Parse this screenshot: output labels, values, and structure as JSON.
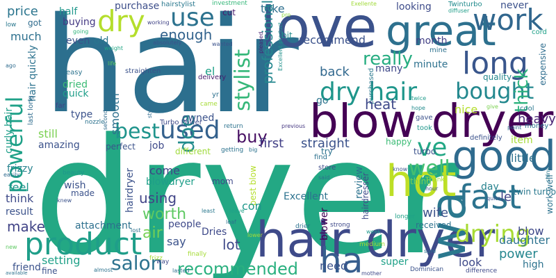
{
  "words": [
    {
      "text": "hair",
      "color": "#2c6f8e"
    },
    {
      "text": "dryer",
      "color": "#23a884"
    },
    {
      "text": "love",
      "color": "#3b528b"
    },
    {
      "text": "great",
      "color": "#2d708e"
    },
    {
      "text": "blow dryer",
      "color": "#440154"
    },
    {
      "text": "hair dryer",
      "color": "#3e4a89"
    },
    {
      "text": "wa",
      "color": "#2a788e"
    },
    {
      "text": "dry",
      "color": "#b4de2c"
    },
    {
      "text": "use",
      "color": "#2c728e"
    },
    {
      "text": "work",
      "color": "#31678e"
    },
    {
      "text": "good",
      "color": "#2f6b8e"
    },
    {
      "text": "hot",
      "color": "#bddf26"
    },
    {
      "text": "fast",
      "color": "#2c738e"
    },
    {
      "text": "product",
      "color": "#1f9e89"
    },
    {
      "text": "bought",
      "color": "#23888e"
    },
    {
      "text": "long",
      "color": "#39568c"
    },
    {
      "text": "dry hair",
      "color": "#1f968b"
    },
    {
      "text": "drying",
      "color": "#a8db34"
    },
    {
      "text": "best",
      "color": "#1f948c"
    },
    {
      "text": "used",
      "color": "#34618d"
    },
    {
      "text": "powerful",
      "color": "#1fa188"
    },
    {
      "text": "stylist",
      "color": "#35b779"
    },
    {
      "text": "doe",
      "color": "#228c8d"
    },
    {
      "text": "buy",
      "color": "#471063"
    },
    {
      "text": "ve",
      "color": "#22a785"
    },
    {
      "text": "well",
      "color": "#44bf70"
    },
    {
      "text": "really",
      "color": "#26ad81"
    },
    {
      "text": "salon",
      "color": "#2c728e"
    },
    {
      "text": "ha",
      "color": "#365d8d"
    },
    {
      "text": "recommended",
      "color": "#2ab07f"
    },
    {
      "text": "enough",
      "color": "#33638d"
    },
    {
      "text": "thick",
      "color": "#2db27d"
    },
    {
      "text": "price",
      "color": "#2b758e"
    },
    {
      "text": "half",
      "color": "#1f978b"
    },
    {
      "text": "purchase",
      "color": "#3d4e8a"
    },
    {
      "text": "take",
      "color": "#2e6f8e"
    },
    {
      "text": "cut",
      "color": "#481b6d"
    },
    {
      "text": "hairstylist",
      "color": "#2a788e"
    },
    {
      "text": "investment",
      "color": "#35b779"
    },
    {
      "text": "looking",
      "color": "#3e4c8a"
    },
    {
      "text": "never",
      "color": "#3b518b"
    },
    {
      "text": "Twinturbo",
      "color": "#228b8d"
    },
    {
      "text": "diffuser",
      "color": "#1f9e89"
    },
    {
      "text": "pro",
      "color": "#90d743"
    },
    {
      "text": "Exellente",
      "color": "#a0da39"
    },
    {
      "text": "much",
      "color": "#2d708e"
    },
    {
      "text": "buying",
      "color": "#443983"
    },
    {
      "text": "professional",
      "color": "#24878e"
    },
    {
      "text": "recommend",
      "color": "#3b528b"
    },
    {
      "text": "month",
      "color": "#424086"
    },
    {
      "text": "cord",
      "color": "#1fa188"
    },
    {
      "text": "mine",
      "color": "#2c718e"
    },
    {
      "text": "minute",
      "color": "#2d718e"
    },
    {
      "text": "expensive",
      "color": "#2e6d8e"
    },
    {
      "text": "quality",
      "color": "#23888e"
    },
    {
      "text": "even",
      "color": "#3b528b"
    },
    {
      "text": "old",
      "color": "#2a768e"
    },
    {
      "text": "weight",
      "color": "#22a785"
    },
    {
      "text": "got",
      "color": "#2f6c8e"
    },
    {
      "text": "going",
      "color": "#31b57b"
    },
    {
      "text": "working",
      "color": "#414487"
    },
    {
      "text": "absolutely",
      "color": "#3b528b"
    },
    {
      "text": "wanted",
      "color": "#3b528b"
    },
    {
      "text": "bit",
      "color": "#228d8d"
    },
    {
      "text": "pleased",
      "color": "#481f70"
    },
    {
      "text": "Excellent product",
      "color": "#21918c"
    },
    {
      "text": "low",
      "color": "#2a788e"
    },
    {
      "text": "easy",
      "color": "#2c738e"
    },
    {
      "text": "life",
      "color": "#5ec962"
    },
    {
      "text": "hair quickly",
      "color": "#2c728e"
    },
    {
      "text": "quick",
      "color": "#1f9e89"
    },
    {
      "text": "dried",
      "color": "#3bbb75"
    },
    {
      "text": "straighten",
      "color": "#3b528b"
    },
    {
      "text": "delivery",
      "color": "#481b6d"
    },
    {
      "text": "el",
      "color": "#1fa188"
    },
    {
      "text": "yr",
      "color": "#2d708e"
    },
    {
      "text": "back",
      "color": "#31688e"
    },
    {
      "text": "many",
      "color": "#3f4889"
    },
    {
      "text": "purchased",
      "color": "#2a788e"
    },
    {
      "text": "twice",
      "color": "#1e9b8a"
    },
    {
      "text": "hope",
      "color": "#228b8d"
    },
    {
      "text": "cool",
      "color": "#2a788e"
    },
    {
      "text": "nice",
      "color": "#b4de2c"
    },
    {
      "text": "give",
      "color": "#7ad151"
    },
    {
      "text": "heat",
      "color": "#3e4989"
    },
    {
      "text": "go",
      "color": "#2c738e"
    },
    {
      "text": "heavy",
      "color": "#482475"
    },
    {
      "text": "money",
      "color": "#2b748e"
    },
    {
      "text": "point",
      "color": "#2f6c8e"
    },
    {
      "text": "ago",
      "color": "#2f6c8e"
    },
    {
      "text": "far",
      "color": "#424086"
    },
    {
      "text": "type",
      "color": "#3b528b"
    },
    {
      "text": "owned",
      "color": "#3b528b"
    },
    {
      "text": "came",
      "color": "#a5db36"
    },
    {
      "text": "style",
      "color": "#2f6b8e"
    },
    {
      "text": "smooth",
      "color": "#2d708e"
    },
    {
      "text": "last long",
      "color": "#2f6c8e"
    },
    {
      "text": "curly hair",
      "color": "#1f9e89"
    },
    {
      "text": "nozzle",
      "color": "#2c728e"
    },
    {
      "text": "second",
      "color": "#2f6b8e"
    },
    {
      "text": "Turbo Power",
      "color": "#3e4989"
    },
    {
      "text": "return",
      "color": "#2c728e"
    },
    {
      "text": "previous",
      "color": "#453781"
    },
    {
      "text": "gave",
      "color": "#3b528b"
    },
    {
      "text": "took",
      "color": "#1f978b"
    },
    {
      "text": "definitely",
      "color": "#3b528b"
    },
    {
      "text": "item",
      "color": "#a5db36"
    },
    {
      "text": "still",
      "color": "#7ad151"
    },
    {
      "text": "amazing",
      "color": "#3b528b"
    },
    {
      "text": "first",
      "color": "#424086"
    },
    {
      "text": "straight",
      "color": "#3b528b"
    },
    {
      "text": "happy",
      "color": "#3bbb75"
    },
    {
      "text": "perfect",
      "color": "#3b528b"
    },
    {
      "text": "job",
      "color": "#3e4989"
    },
    {
      "text": "different",
      "color": "#9fda3a"
    },
    {
      "text": "getting",
      "color": "#2c728e"
    },
    {
      "text": "big",
      "color": "#2c728e"
    },
    {
      "text": "try",
      "color": "#2c728e"
    },
    {
      "text": "turbo",
      "color": "#3b528b"
    },
    {
      "text": "little",
      "color": "#2d718e"
    },
    {
      "text": "frizzy",
      "color": "#26828e"
    },
    {
      "text": "come",
      "color": "#414487"
    },
    {
      "text": "blowdryer",
      "color": "#1f9e89"
    },
    {
      "text": "find",
      "color": "#2c718e"
    },
    {
      "text": "store",
      "color": "#3e4a89"
    },
    {
      "text": "know",
      "color": "#3b528b"
    },
    {
      "text": "shiny",
      "color": "#2a788e"
    },
    {
      "text": "easily",
      "color": "#2f6b8e"
    },
    {
      "text": "beauty",
      "color": "#1f978b"
    },
    {
      "text": "wish",
      "color": "#3b528b"
    },
    {
      "text": "mom",
      "color": "#3e4989"
    },
    {
      "text": "review",
      "color": "#2c728e"
    },
    {
      "text": "thing",
      "color": "#7ad151"
    },
    {
      "text": "Thank",
      "color": "#a5db36"
    },
    {
      "text": "said",
      "color": "#2c728e"
    },
    {
      "text": "day",
      "color": "#26828e"
    },
    {
      "text": "hour",
      "color": "#3b528b"
    },
    {
      "text": "twin turbo",
      "color": "#2a788e"
    },
    {
      "text": "work well",
      "color": "#2c728e"
    },
    {
      "text": "feel",
      "color": "#1f968b"
    },
    {
      "text": "think",
      "color": "#3e4a89"
    },
    {
      "text": "knew",
      "color": "#3b528b"
    },
    {
      "text": "made",
      "color": "#3b528b"
    },
    {
      "text": "hairdryer",
      "color": "#3b528b"
    },
    {
      "text": "using",
      "color": "#414487"
    },
    {
      "text": "best blow",
      "color": "#b4de2c"
    },
    {
      "text": "con",
      "color": "#1f978b"
    },
    {
      "text": "Excellent",
      "color": "#2c728e"
    },
    {
      "text": "hairdresser",
      "color": "#3e4989"
    },
    {
      "text": "wife",
      "color": "#3b528b"
    },
    {
      "text": "quite",
      "color": "#3b528b"
    },
    {
      "text": "le",
      "color": "#414487"
    },
    {
      "text": "result",
      "color": "#3b528b"
    },
    {
      "text": "worth",
      "color": "#5ec962"
    },
    {
      "text": "attachment",
      "color": "#2d708e"
    },
    {
      "text": "least",
      "color": "#2a788e"
    },
    {
      "text": "leave",
      "color": "#1fa188"
    },
    {
      "text": "blower",
      "color": "#440154"
    },
    {
      "text": "received",
      "color": "#2c728e"
    },
    {
      "text": "longer",
      "color": "#1fa188"
    },
    {
      "text": "blow",
      "color": "#3e4989"
    },
    {
      "text": "make",
      "color": "#414487"
    },
    {
      "text": "air",
      "color": "#75d054"
    },
    {
      "text": "people",
      "color": "#3e4989"
    },
    {
      "text": "lost",
      "color": "#2c728e"
    },
    {
      "text": "Dries",
      "color": "#3e4989"
    },
    {
      "text": "leaf",
      "color": "#2c728e"
    },
    {
      "text": "lower",
      "color": "#a5db36"
    },
    {
      "text": "drier",
      "color": "#2c728e"
    },
    {
      "text": "strong",
      "color": "#3e4989"
    },
    {
      "text": "week",
      "color": "#1f978b"
    },
    {
      "text": "daughter",
      "color": "#2c728e"
    },
    {
      "text": "power",
      "color": "#24868e"
    },
    {
      "text": "high",
      "color": "#2c728e"
    },
    {
      "text": "say",
      "color": "#3b528b"
    },
    {
      "text": "lot",
      "color": "#3e4989"
    },
    {
      "text": "new",
      "color": "#5ec962"
    },
    {
      "text": "friend",
      "color": "#3b528b"
    },
    {
      "text": "setting",
      "color": "#1fa188"
    },
    {
      "text": "frizz",
      "color": "#a5db36"
    },
    {
      "text": "finally",
      "color": "#a5db36"
    },
    {
      "text": "medium",
      "color": "#a5db36"
    },
    {
      "text": "super",
      "color": "#1fa188"
    },
    {
      "text": "sure",
      "color": "#2c728e"
    },
    {
      "text": "look",
      "color": "#3e4989"
    },
    {
      "text": "need",
      "color": "#3b528b"
    },
    {
      "text": "available",
      "color": "#2c728e"
    },
    {
      "text": "fine",
      "color": "#3b528b"
    },
    {
      "text": "almost",
      "color": "#2c728e"
    },
    {
      "text": "way",
      "color": "#3e4989"
    },
    {
      "text": "lasted",
      "color": "#2c728e"
    },
    {
      "text": "mother",
      "color": "#3e4989"
    },
    {
      "text": "Dominican",
      "color": "#3b528b"
    },
    {
      "text": "difference",
      "color": "#3e4989"
    }
  ]
}
